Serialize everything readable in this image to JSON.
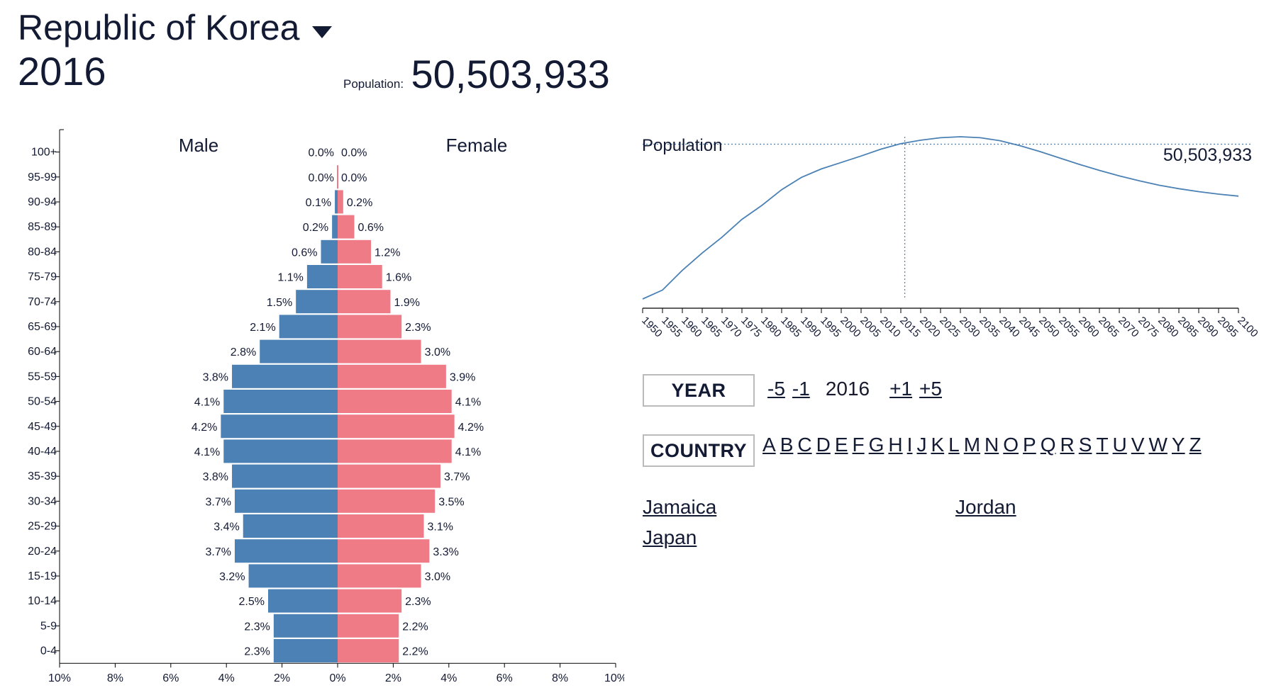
{
  "header": {
    "country": "Republic of Korea",
    "year": "2016",
    "population_label": "Population:",
    "population_value": "50,503,933"
  },
  "controls": {
    "year_label": "YEAR",
    "minus5": "-5",
    "minus1": "-1",
    "current_year": "2016",
    "plus1": "+1",
    "plus5": "+5",
    "country_label": "COUNTRY",
    "letters": [
      "A",
      "B",
      "C",
      "D",
      "E",
      "F",
      "G",
      "H",
      "I",
      "J",
      "K",
      "L",
      "M",
      "N",
      "O",
      "P",
      "Q",
      "R",
      "S",
      "T",
      "U",
      "V",
      "W",
      "Y",
      "Z"
    ]
  },
  "country_list": [
    "Jamaica",
    "Jordan",
    "Japan"
  ],
  "colors": {
    "male": "#4b81b4",
    "female": "#ef7b87",
    "line": "#4b81b4"
  },
  "chart_data": [
    {
      "type": "bar",
      "title": "Population pyramid",
      "male_label": "Male",
      "female_label": "Female",
      "categories": [
        "100+",
        "95-99",
        "90-94",
        "85-89",
        "80-84",
        "75-79",
        "70-74",
        "65-69",
        "60-64",
        "55-59",
        "50-54",
        "45-49",
        "40-44",
        "35-39",
        "30-34",
        "25-29",
        "20-24",
        "15-19",
        "10-14",
        "5-9",
        "0-4"
      ],
      "series": [
        {
          "name": "Male",
          "values": [
            0.0,
            0.0,
            0.1,
            0.2,
            0.6,
            1.1,
            1.5,
            2.1,
            2.8,
            3.8,
            4.1,
            4.2,
            4.1,
            3.8,
            3.7,
            3.4,
            3.7,
            3.2,
            2.5,
            2.3,
            2.3
          ]
        },
        {
          "name": "Female",
          "values": [
            0.0,
            0.0,
            0.2,
            0.6,
            1.2,
            1.6,
            1.9,
            2.3,
            3.0,
            3.9,
            4.1,
            4.2,
            4.1,
            3.7,
            3.5,
            3.1,
            3.3,
            3.0,
            2.3,
            2.2,
            2.2
          ]
        }
      ],
      "x_ticks": [
        "10%",
        "8%",
        "6%",
        "4%",
        "2%",
        "0%",
        "2%",
        "4%",
        "6%",
        "8%",
        "10%"
      ],
      "xlim": [
        -10,
        10
      ],
      "value_suffix": "%"
    },
    {
      "type": "line",
      "title": "Population",
      "x": [
        1950,
        1955,
        1960,
        1965,
        1970,
        1975,
        1980,
        1985,
        1990,
        1995,
        2000,
        2005,
        2010,
        2015,
        2020,
        2025,
        2030,
        2035,
        2040,
        2045,
        2050,
        2055,
        2060,
        2065,
        2070,
        2075,
        2080,
        2085,
        2090,
        2095,
        2100
      ],
      "y": [
        19.2,
        21.0,
        25.0,
        28.5,
        31.7,
        35.3,
        38.1,
        41.3,
        43.8,
        45.5,
        46.8,
        48.1,
        49.5,
        50.6,
        51.3,
        51.8,
        52.0,
        51.8,
        51.2,
        50.2,
        49.0,
        47.7,
        46.4,
        45.2,
        44.1,
        43.1,
        42.2,
        41.5,
        40.9,
        40.4,
        40.0
      ],
      "x_tick_labels": [
        "1950",
        "1955",
        "1960",
        "1965",
        "1970",
        "1975",
        "1980",
        "1985",
        "1990",
        "1995",
        "2000",
        "2005",
        "2010",
        "2015",
        "2020",
        "2025",
        "2030",
        "2035",
        "2040",
        "2045",
        "2050",
        "2055",
        "2060",
        "2065",
        "2070",
        "2075",
        "2080",
        "2085",
        "2090",
        "2095",
        "2100"
      ],
      "marker_year": 2016,
      "marker_value": 50.5,
      "marker_label": "50,503,933",
      "ylim": [
        19.2,
        52.0
      ]
    }
  ]
}
